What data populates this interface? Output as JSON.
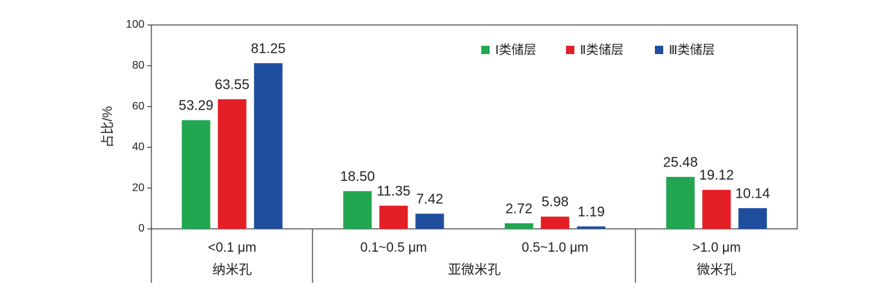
{
  "chart_data": {
    "type": "bar",
    "y_label": "占比/%",
    "categories": [
      "<0.1 μm",
      "0.1~0.5 μm",
      "0.5~1.0 μm",
      ">1.0 μm"
    ],
    "category_groups": [
      "纳米孔",
      "亚微米孔",
      "亚微米孔",
      "微米孔"
    ],
    "series": [
      {
        "name": "Ⅰ类储层",
        "color": "#22a650",
        "values": [
          53.29,
          18.5,
          2.72,
          25.48
        ],
        "value_labels": [
          "53.29",
          "18.50",
          "2.72",
          "25.48"
        ]
      },
      {
        "name": "Ⅱ类储层",
        "color": "#e31e24",
        "values": [
          63.55,
          11.35,
          5.98,
          19.12
        ],
        "value_labels": [
          "63.55",
          "11.35",
          "5.98",
          "19.12"
        ]
      },
      {
        "name": "Ⅲ类储层",
        "color": "#1f4e9e",
        "values": [
          81.25,
          7.42,
          1.19,
          10.14
        ],
        "value_labels": [
          "81.25",
          "7.42",
          "1.19",
          "10.14"
        ]
      }
    ],
    "ylim": [
      0,
      100
    ],
    "yticks": [
      0,
      20,
      40,
      60,
      80,
      100
    ],
    "legend": "top-right"
  }
}
